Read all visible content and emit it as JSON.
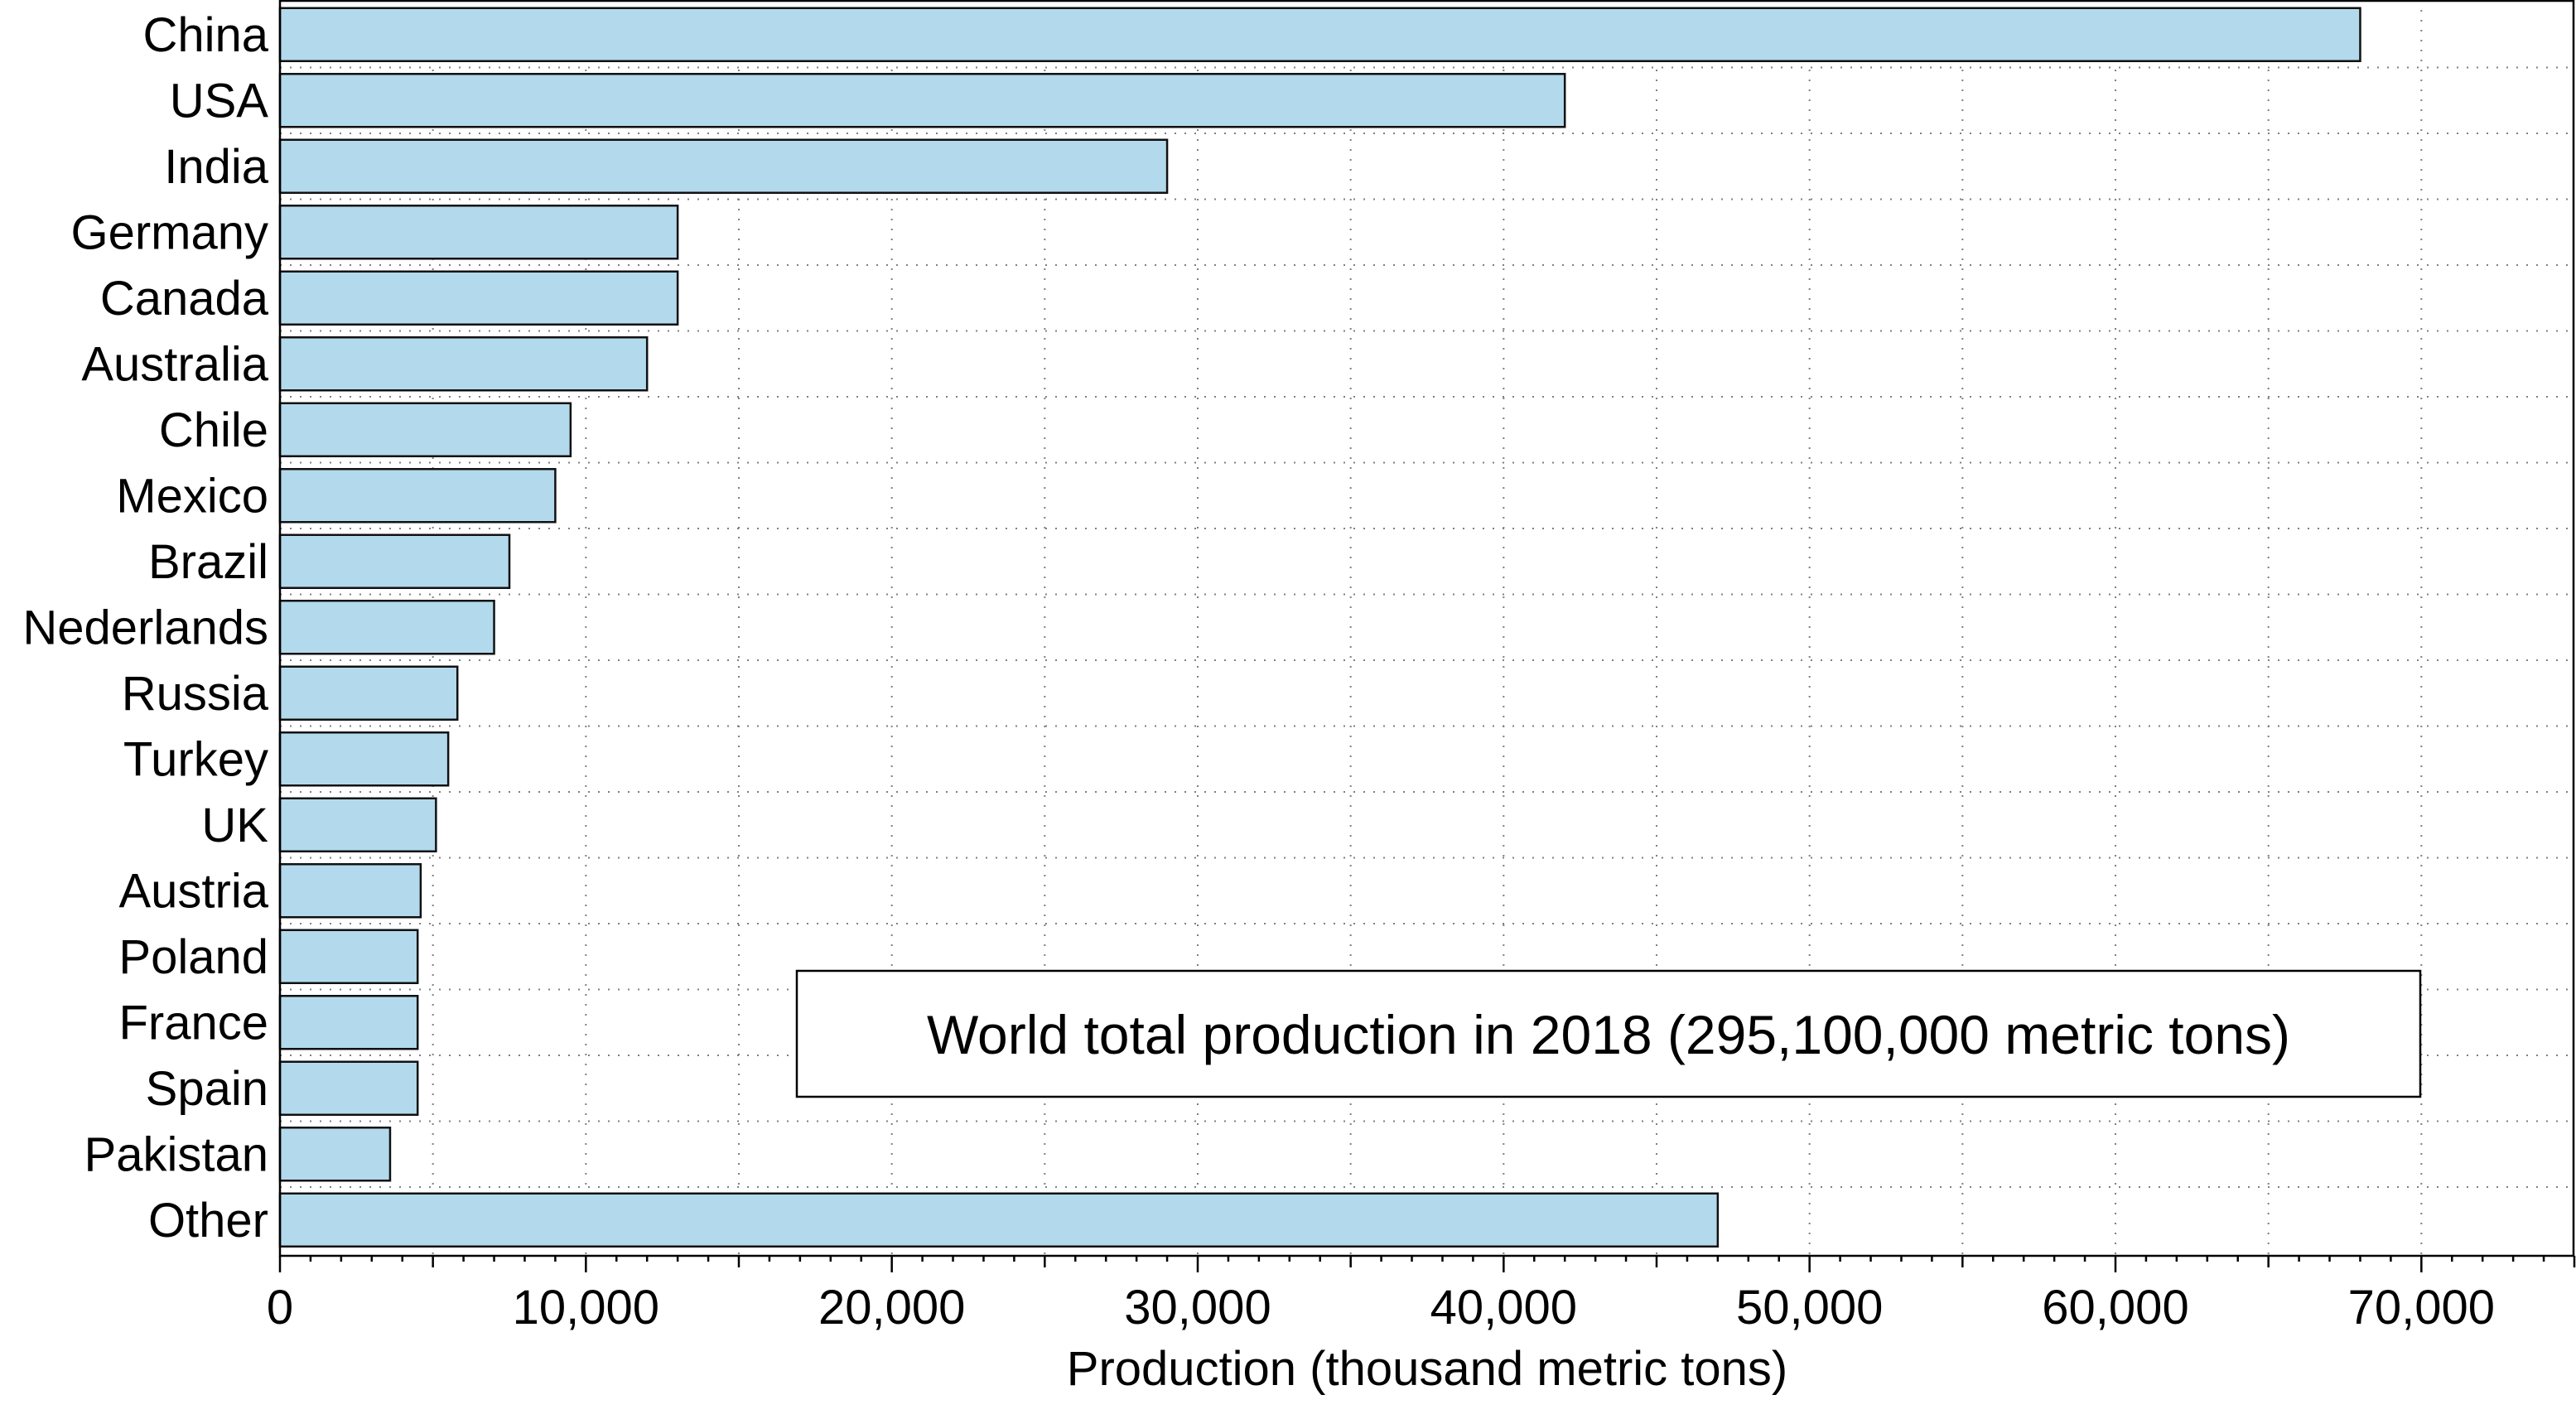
{
  "chart_data": {
    "type": "bar",
    "orientation": "horizontal",
    "categories": [
      "China",
      "USA",
      "India",
      "Germany",
      "Canada",
      "Australia",
      "Chile",
      "Mexico",
      "Brazil",
      "Nederlands",
      "Russia",
      "Turkey",
      "UK",
      "Austria",
      "Poland",
      "France",
      "Spain",
      "Pakistan",
      "Other"
    ],
    "values": [
      68000,
      42000,
      29000,
      13000,
      13000,
      12000,
      9500,
      9000,
      7500,
      7000,
      5800,
      5500,
      5100,
      4600,
      4500,
      4500,
      4500,
      3600,
      47000
    ],
    "title": "",
    "xlabel": "Production (thousand metric tons)",
    "ylabel": "",
    "xlim": [
      0,
      75000
    ],
    "xticks": [
      0,
      10000,
      20000,
      30000,
      40000,
      50000,
      60000,
      70000
    ],
    "xtick_labels": [
      "0",
      "10,000",
      "20,000",
      "30,000",
      "40,000",
      "50,000",
      "60,000",
      "70,000"
    ],
    "grid": true,
    "bar_color": "#b3d9ec",
    "annotation": "World total production in 2018 (295,100,000 metric tons)"
  }
}
